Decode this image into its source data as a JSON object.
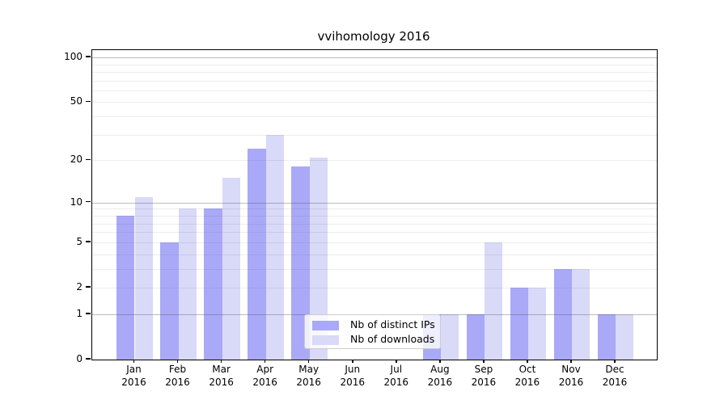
{
  "chart_data": {
    "type": "bar",
    "title": "vvihomology 2016",
    "categories": [
      "Jan",
      "Feb",
      "Mar",
      "Apr",
      "May",
      "Jun",
      "Jul",
      "Aug",
      "Sep",
      "Oct",
      "Nov",
      "Dec"
    ],
    "year": "2016",
    "series": [
      {
        "name": "Nb of distinct IPs",
        "color": "#a9a9f8",
        "values": [
          8,
          5,
          9,
          24,
          18,
          0,
          0,
          1,
          1,
          2,
          3,
          1
        ]
      },
      {
        "name": "Nb of downloads",
        "color": "#d9d9f8",
        "values": [
          11,
          9,
          15,
          30,
          21,
          0,
          0,
          1,
          5,
          2,
          3,
          1
        ]
      }
    ],
    "xlabel": "",
    "ylabel": "",
    "yscale": "log1p",
    "ylim": [
      0,
      112
    ],
    "yticks": [
      0,
      1,
      2,
      5,
      10,
      20,
      50,
      100
    ],
    "major_gridlines": [
      1,
      10,
      100
    ],
    "minor_gridlines": [
      2,
      3,
      4,
      5,
      6,
      7,
      8,
      9,
      20,
      30,
      40,
      50,
      60,
      70,
      80,
      90
    ],
    "grid": "on",
    "legend_position": "lower center"
  }
}
